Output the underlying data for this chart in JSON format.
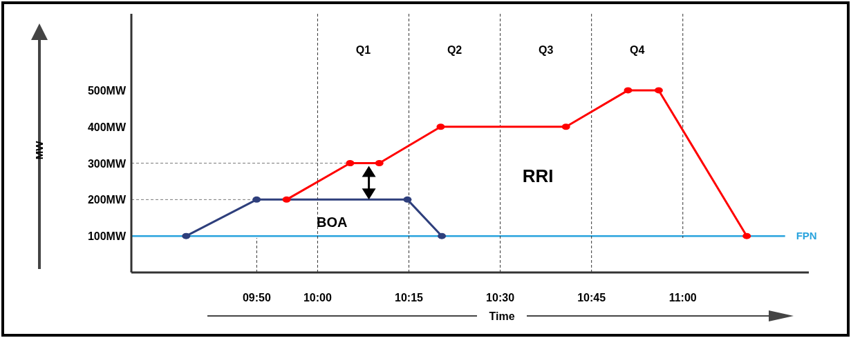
{
  "chart_data": {
    "type": "line",
    "xlabel": "Time",
    "ylabel": "MW",
    "xlim": [
      9.49,
      11.345
    ],
    "ylim": [
      0,
      710
    ],
    "xticks": [
      {
        "value": 9.8333,
        "label": "09:50"
      },
      {
        "value": 10,
        "label": "10:00"
      },
      {
        "value": 10.25,
        "label": "10:15"
      },
      {
        "value": 10.5,
        "label": "10:30"
      },
      {
        "value": 10.75,
        "label": "10:45"
      },
      {
        "value": 11,
        "label": "11:00"
      }
    ],
    "yticks": [
      {
        "value": 100,
        "label": "100MW"
      },
      {
        "value": 200,
        "label": "200MW"
      },
      {
        "value": 300,
        "label": "300MW"
      },
      {
        "value": 400,
        "label": "400MW"
      },
      {
        "value": 500,
        "label": "500MW"
      }
    ],
    "series": [
      {
        "color": "#2e3f7c",
        "x": [
          9.64,
          9.833,
          10.246,
          10.34
        ],
        "values": [
          100,
          200,
          200,
          100
        ]
      },
      {
        "color": "#ff0000",
        "x": [
          9.915,
          10.089,
          10.169,
          10.337,
          10.68,
          10.85,
          10.934,
          11.175
        ],
        "values": [
          200,
          300,
          300,
          400,
          400,
          500,
          500,
          100
        ]
      }
    ],
    "ref_lines": [
      {
        "axis": "y",
        "value": 100,
        "label": "FPN",
        "color": "#29a3dd",
        "line_style": "solid"
      },
      {
        "axis": "x",
        "value": 9.8333,
        "line_style": "dashed"
      },
      {
        "axis": "y",
        "value": 200,
        "line_style": "dashed"
      },
      {
        "axis": "y",
        "value": 300,
        "line_style": "dashed"
      },
      {
        "axis": "x",
        "value": 10,
        "line_style": "dashed"
      },
      {
        "axis": "x",
        "value": 10.25,
        "line_style": "dashed"
      },
      {
        "axis": "x",
        "value": 10.5,
        "line_style": "dashed"
      },
      {
        "axis": "x",
        "value": 10.75,
        "line_style": "dashed"
      },
      {
        "axis": "x",
        "value": 11,
        "line_style": "dashed"
      }
    ],
    "annotations": [
      "BOA",
      "RRI",
      "Q1",
      "Q2",
      "Q3",
      "Q4"
    ],
    "marker": "circle",
    "line_style": "solid"
  }
}
